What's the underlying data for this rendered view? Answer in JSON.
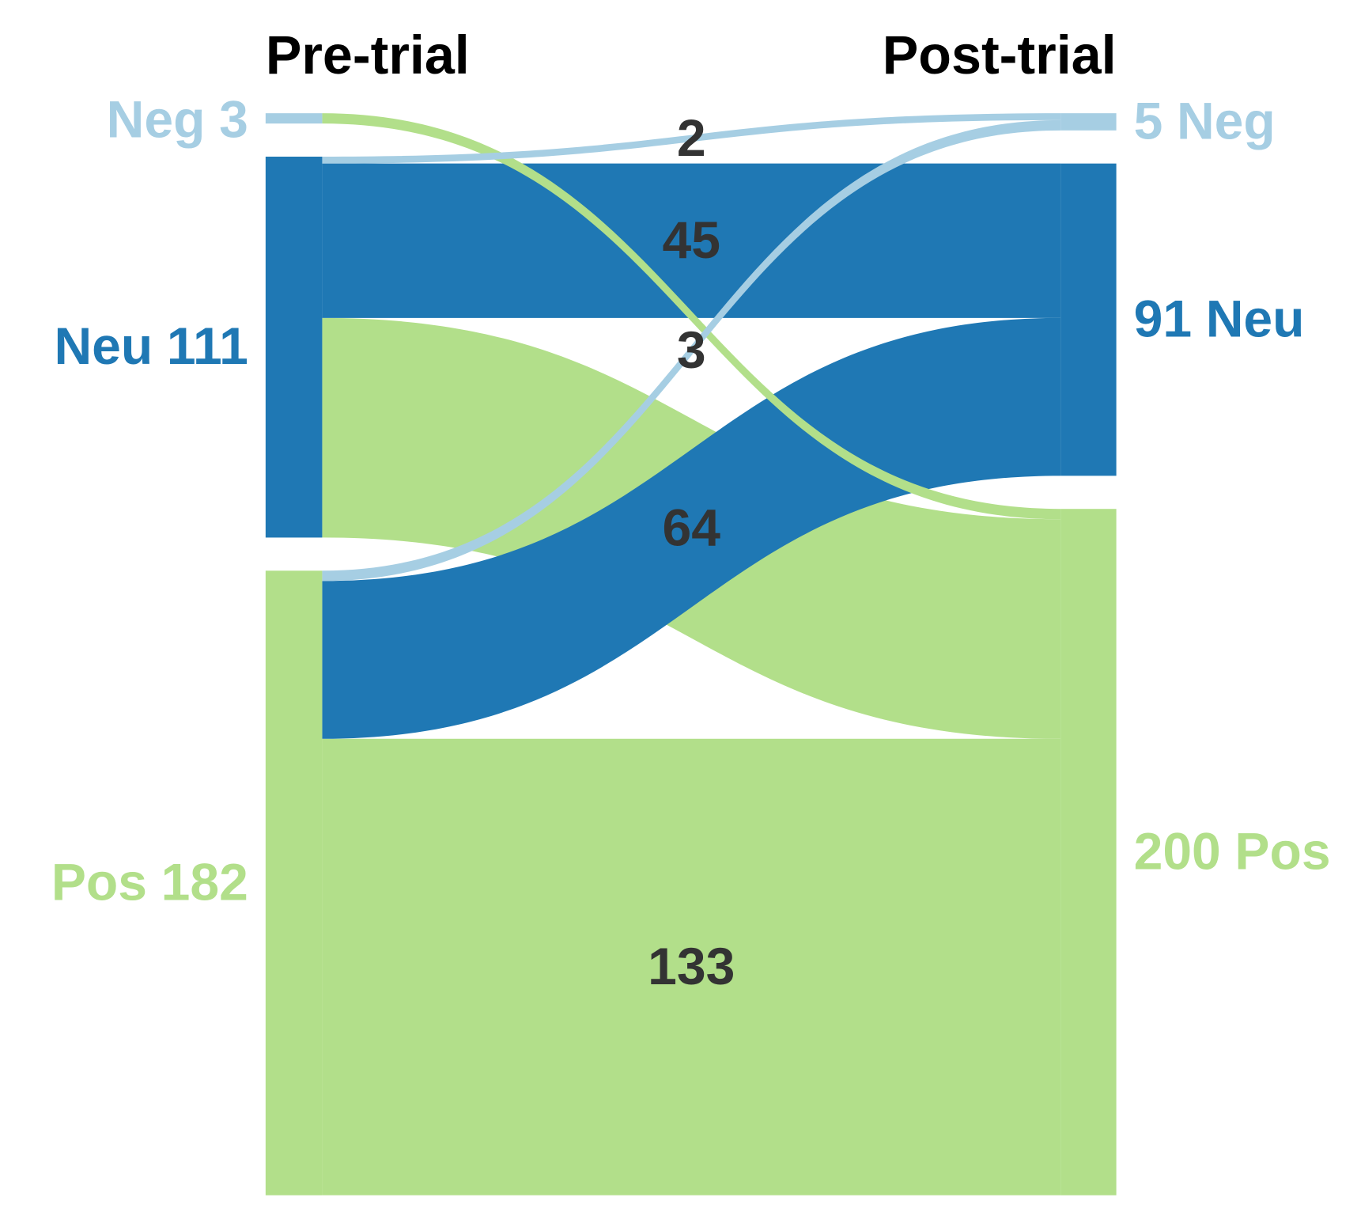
{
  "chart_data": {
    "type": "sankey",
    "columns": [
      {
        "title": "Pre-trial",
        "nodes": [
          {
            "name": "Neg",
            "value": 3,
            "color": "#a6cee3"
          },
          {
            "name": "Neu",
            "value": 111,
            "color": "#1f78b4"
          },
          {
            "name": "Pos",
            "value": 182,
            "color": "#b2df8a"
          }
        ]
      },
      {
        "title": "Post-trial",
        "nodes": [
          {
            "name": "Neg",
            "value": 5,
            "color": "#a6cee3"
          },
          {
            "name": "Neu",
            "value": 91,
            "color": "#1f78b4"
          },
          {
            "name": "Pos",
            "value": 200,
            "color": "#b2df8a"
          }
        ]
      }
    ],
    "links": [
      {
        "source": "Neg",
        "target": "Pos",
        "value": 3,
        "show_label": false
      },
      {
        "source": "Neu",
        "target": "Neg",
        "value": 2,
        "show_label": true
      },
      {
        "source": "Neu",
        "target": "Neu",
        "value": 45,
        "show_label": true
      },
      {
        "source": "Neu",
        "target": "Pos",
        "value": 64,
        "show_label": true
      },
      {
        "source": "Pos",
        "target": "Neg",
        "value": 3,
        "show_label": true
      },
      {
        "source": "Pos",
        "target": "Neu",
        "value": 46,
        "show_label": false
      },
      {
        "source": "Pos",
        "target": "Pos",
        "value": 133,
        "show_label": true
      }
    ]
  }
}
